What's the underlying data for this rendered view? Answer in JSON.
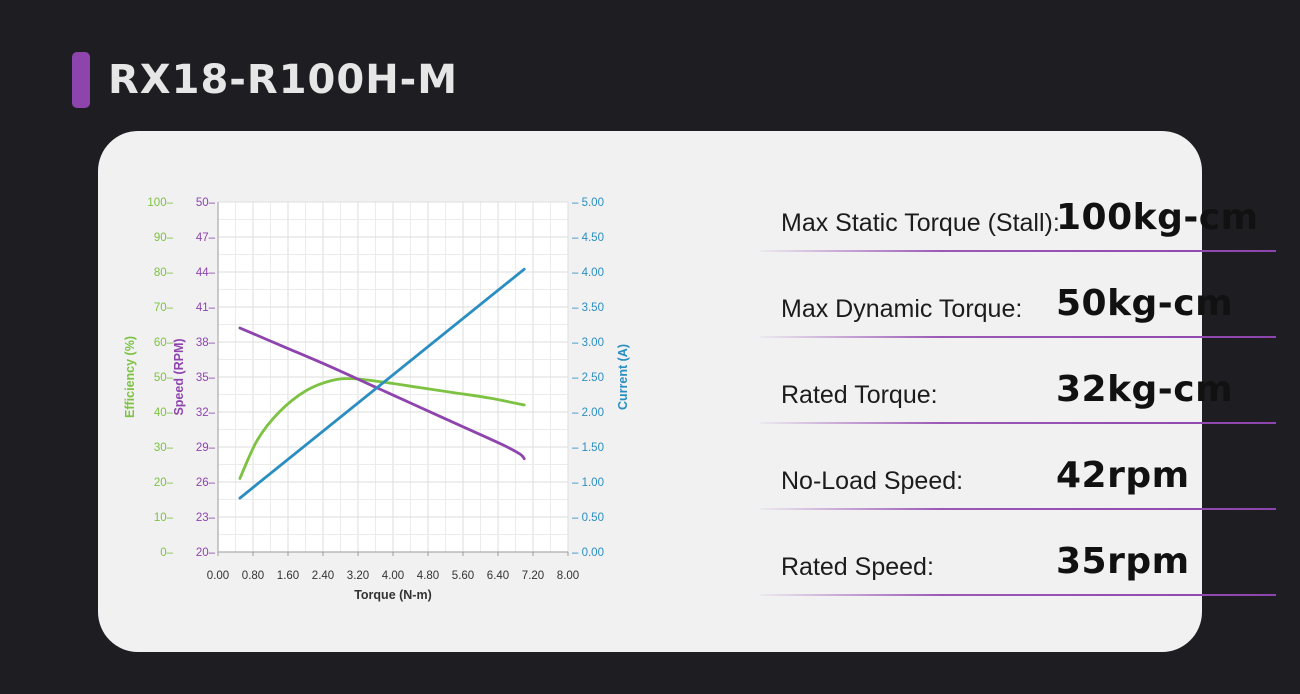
{
  "page": {
    "title": "RX18-R100H-M"
  },
  "specs": [
    {
      "label": "Max Static Torque (Stall):",
      "value": "100kg-cm"
    },
    {
      "label": "Max Dynamic Torque:",
      "value": "50kg-cm"
    },
    {
      "label": "Rated Torque:",
      "value": "32kg-cm"
    },
    {
      "label": "No-Load Speed:",
      "value": "42rpm"
    },
    {
      "label": "Rated Speed:",
      "value": "35rpm"
    }
  ],
  "colors": {
    "efficiency": "#7dc242",
    "speed": "#8e44ad",
    "current": "#2b8ec0",
    "accent": "#8e44ad"
  },
  "chart_data": {
    "type": "line",
    "xlabel": "Torque (N-m)",
    "xlim": [
      0,
      8
    ],
    "xticks": [
      "0.00",
      "0.80",
      "1.60",
      "2.40",
      "3.20",
      "4.00",
      "4.80",
      "5.60",
      "6.40",
      "7.20",
      "8.00"
    ],
    "grid": true,
    "axes": {
      "efficiency": {
        "label": "Efficiency (%)",
        "range": [
          0,
          100
        ],
        "ticks": [
          "100",
          "90",
          "80",
          "70",
          "60",
          "50",
          "40",
          "30",
          "20",
          "10",
          "0"
        ]
      },
      "speed": {
        "label": "Speed (RPM)",
        "range": [
          20,
          50
        ],
        "ticks": [
          "50",
          "47",
          "44",
          "41",
          "38",
          "35",
          "32",
          "29",
          "26",
          "23",
          "20"
        ]
      },
      "current": {
        "label": "Current (A)",
        "range": [
          0,
          5
        ],
        "ticks": [
          "5.00",
          "4.50",
          "4.00",
          "3.50",
          "3.00",
          "2.50",
          "2.00",
          "1.50",
          "1.00",
          "0.50",
          "0.00"
        ]
      }
    },
    "series": [
      {
        "axis": "efficiency",
        "x": [
          0.5,
          0.9,
          1.4,
          2.0,
          2.6,
          3.1,
          3.8,
          4.6,
          5.4,
          6.2,
          7.0
        ],
        "y": [
          21,
          32,
          40,
          46,
          49,
          49.5,
          48.5,
          47,
          45.5,
          44,
          42
        ]
      },
      {
        "axis": "speed",
        "x": [
          0.5,
          1.5,
          2.5,
          3.5,
          4.5,
          5.5,
          6.5,
          6.9,
          7.0
        ],
        "y": [
          39.2,
          37.6,
          36.0,
          34.3,
          32.6,
          30.9,
          29.2,
          28.4,
          28.0
        ]
      },
      {
        "axis": "current",
        "x": [
          0.5,
          7.0
        ],
        "y": [
          0.77,
          4.04
        ]
      }
    ]
  }
}
